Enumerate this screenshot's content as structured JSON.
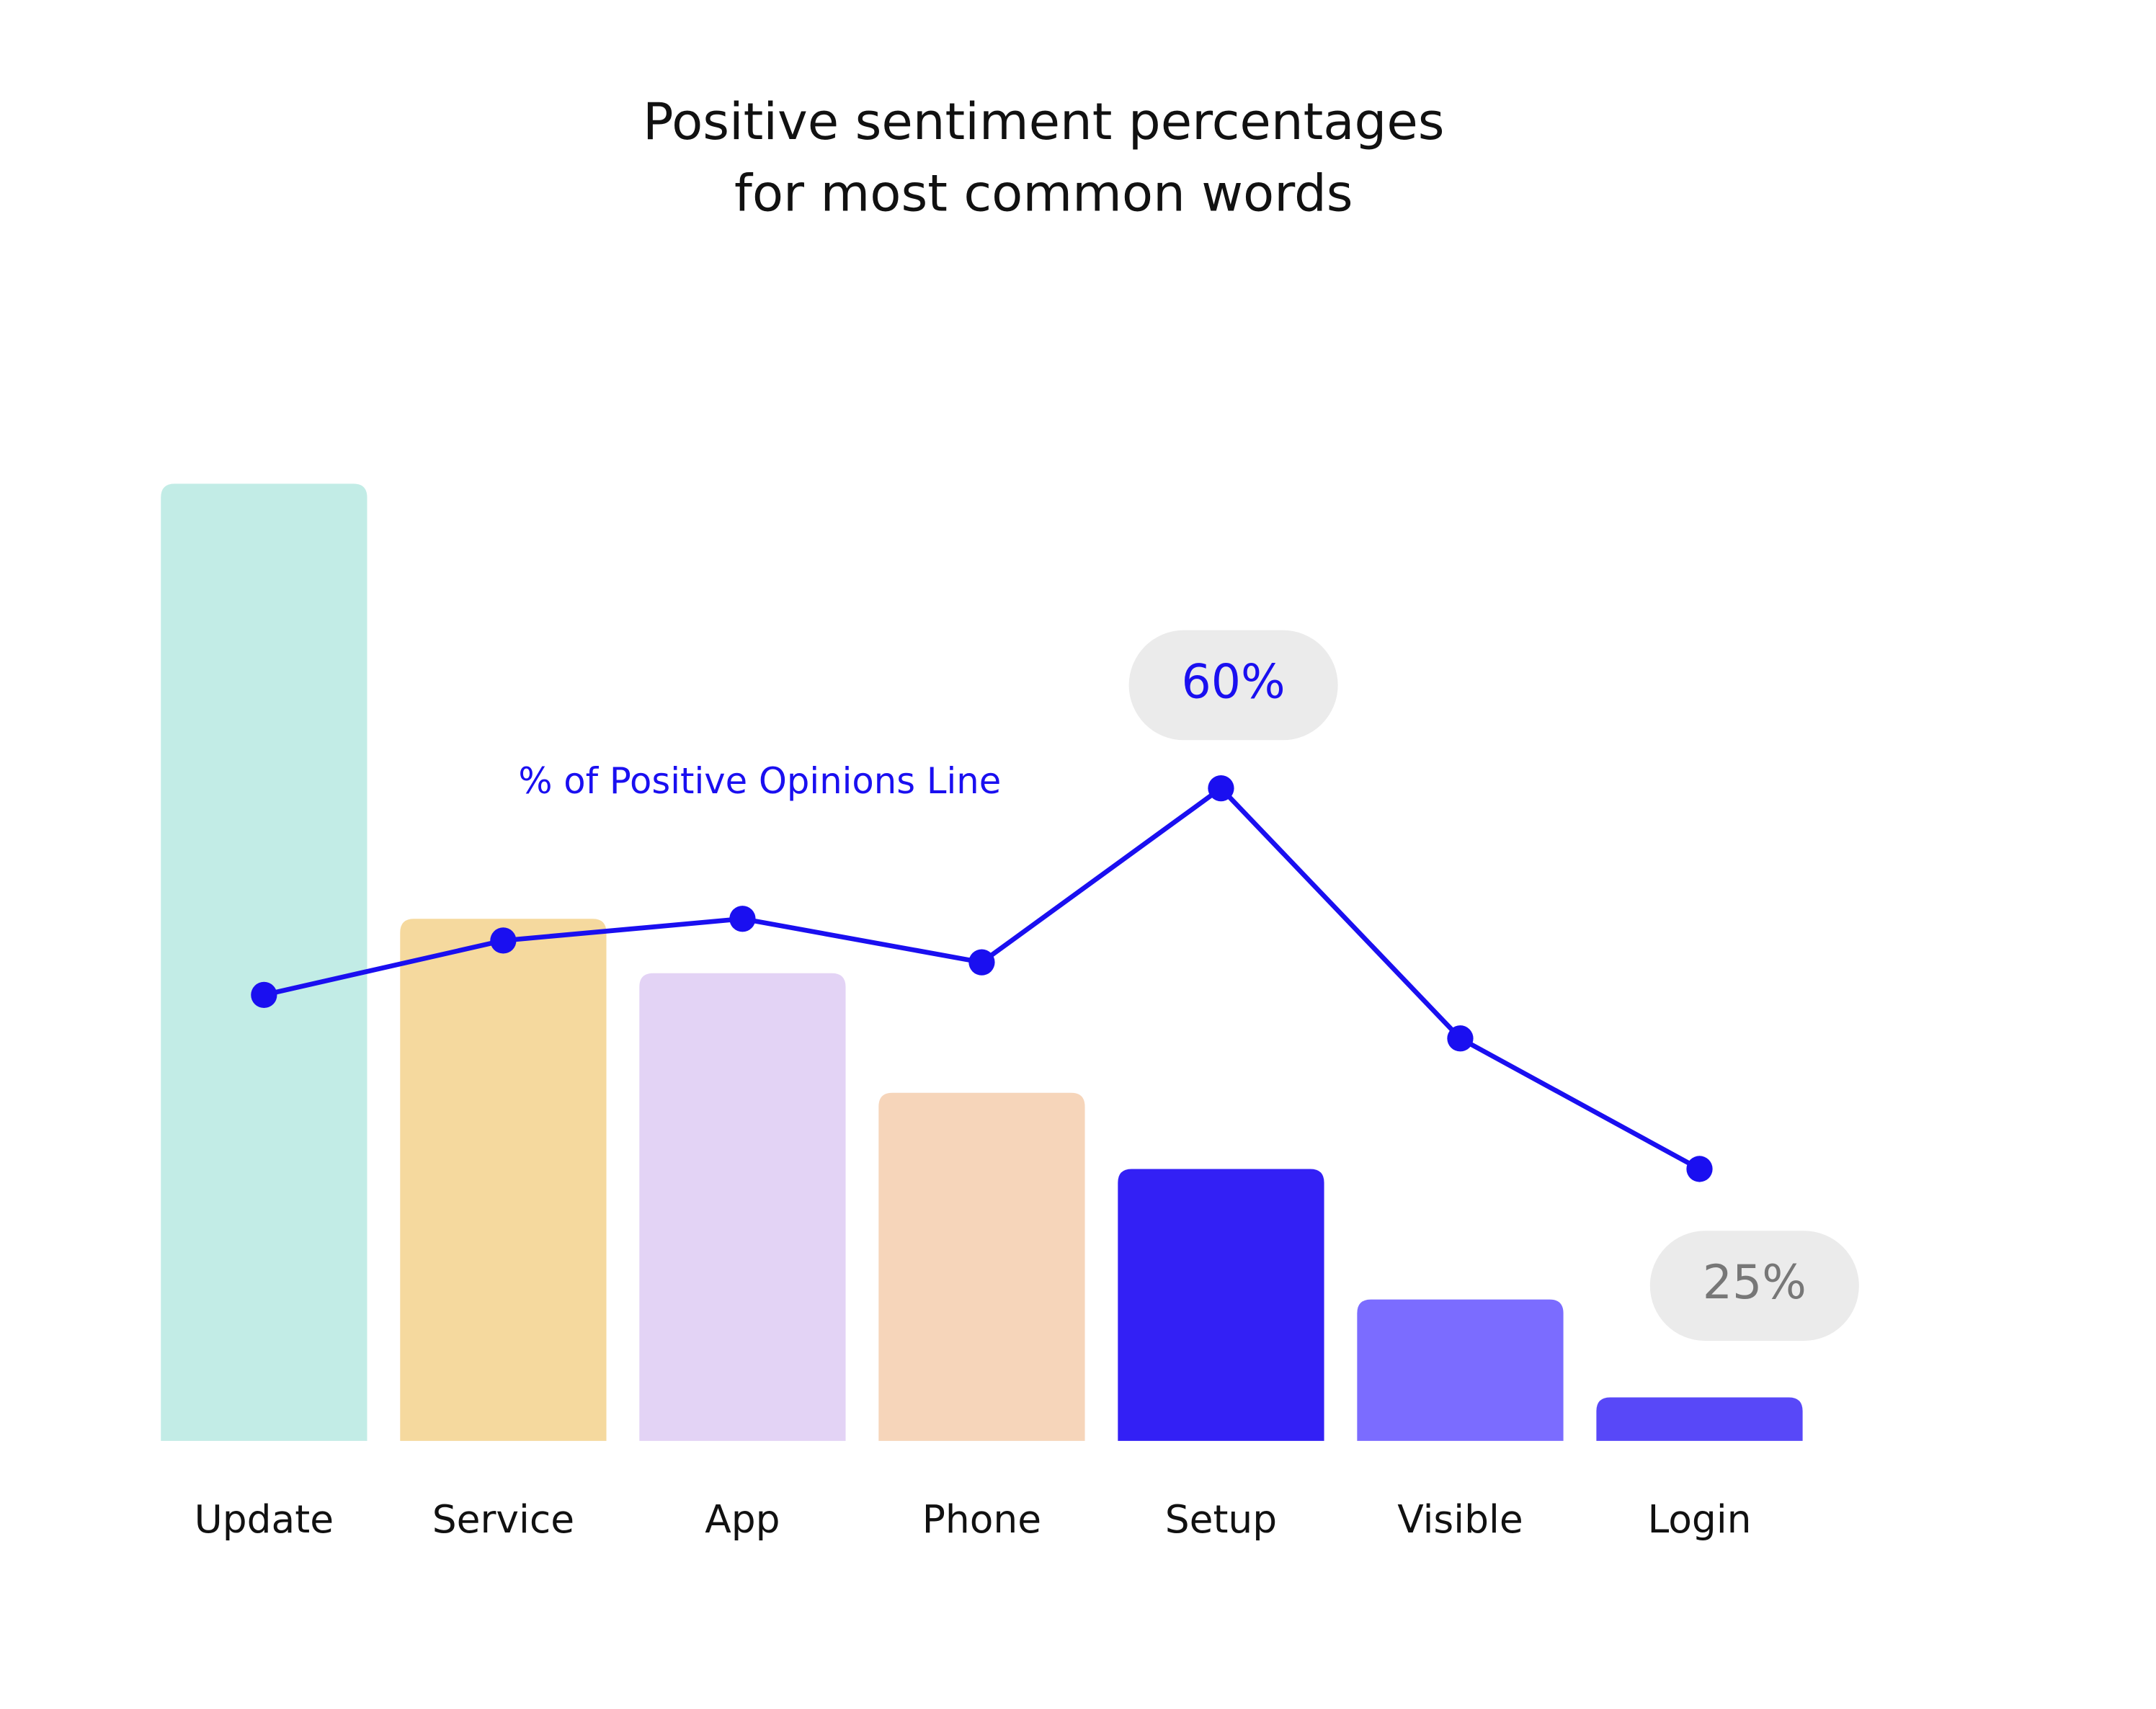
{
  "chart_data": {
    "type": "bar",
    "title": [
      "Positive sentiment percentages",
      "for most common words"
    ],
    "categories": [
      "Update",
      "Service",
      "App",
      "Phone",
      "Setup",
      "Visible",
      "Login"
    ],
    "values": [
      88,
      48,
      43,
      32,
      25,
      13,
      4
    ],
    "colors": [
      "#c2ece6",
      "#f5d99e",
      "#e3d3f5",
      "#f6d5ba",
      "#3320f5",
      "#7b6cff",
      "#5848f8"
    ],
    "ylim": [
      0,
      90
    ],
    "line": {
      "name": "% of Positive Opinions Line",
      "color": "#1a0ff0",
      "values": [
        41,
        46,
        48,
        44,
        60,
        37,
        25
      ],
      "value_labels": [
        null,
        null,
        null,
        null,
        "60%",
        null,
        "25%"
      ]
    }
  }
}
